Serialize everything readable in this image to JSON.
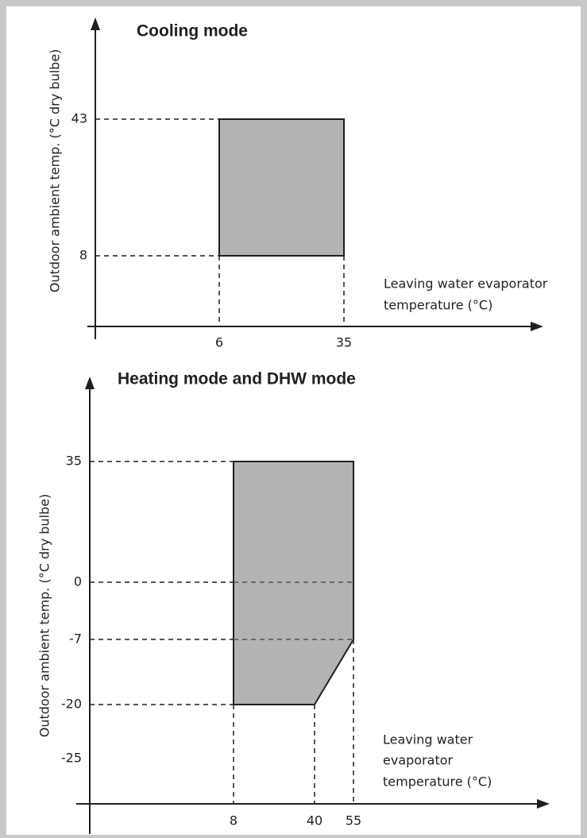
{
  "panels": [
    {
      "title": "Cooling mode",
      "y_axis_label": "Outdoor ambient temp. (°C dry bulbe)",
      "x_axis_label": [
        "Leaving water evaporator",
        "temperature (°C)"
      ],
      "y_ticks": [
        "43",
        "8"
      ],
      "x_ticks": [
        "6",
        "35"
      ]
    },
    {
      "title": "Heating mode and DHW mode",
      "y_axis_label": "Outdoor ambient temp. (°C dry bulbe)",
      "x_axis_label": [
        "Leaving water",
        "evaporator",
        "temperature (°C)"
      ],
      "y_ticks": [
        "35",
        "0",
        "-7",
        "-20",
        "-25"
      ],
      "x_ticks": [
        "8",
        "40",
        "55"
      ]
    }
  ]
}
